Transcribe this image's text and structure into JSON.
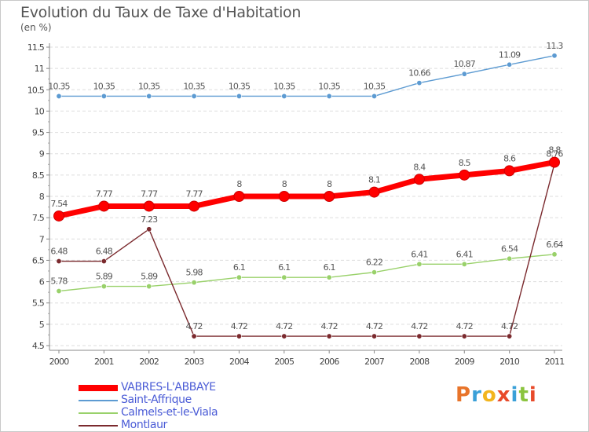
{
  "header": {
    "title": "Evolution du Taux de Taxe d'Habitation",
    "unit": "(en %)"
  },
  "logo": {
    "text": "Proxiti",
    "colors": [
      "#e8742a",
      "#3aa0d8",
      "#f2b51e",
      "#e84a2a",
      "#3aa0d8",
      "#8bc43f",
      "#e84a2a"
    ]
  },
  "chart_data": {
    "type": "line",
    "x": [
      "2000",
      "2001",
      "2002",
      "2003",
      "2004",
      "2005",
      "2006",
      "2007",
      "2008",
      "2009",
      "2010",
      "2011"
    ],
    "ylim": [
      4.5,
      11.5
    ],
    "yticks": [
      "4.5",
      "5",
      "5.5",
      "6",
      "6.5",
      "7",
      "7.5",
      "8",
      "8.5",
      "9",
      "9.5",
      "10",
      "10.5",
      "11",
      "11.5"
    ],
    "grid": "horizontal dashed",
    "legend_position": "bottom-left",
    "series": [
      {
        "name": "VABRES-L'ABBAYE",
        "color": "#ff0000",
        "values": [
          7.54,
          7.77,
          7.77,
          7.77,
          8,
          8,
          8,
          8.1,
          8.4,
          8.5,
          8.6,
          8.8
        ],
        "labels": [
          "7.54",
          "7.77",
          "7.77",
          "7.77",
          "8",
          "8",
          "8",
          "8.1",
          "8.4",
          "8.5",
          "8.6",
          "8.8"
        ]
      },
      {
        "name": "Saint-Affrique",
        "color": "#5d9bd2",
        "values": [
          10.35,
          10.35,
          10.35,
          10.35,
          10.35,
          10.35,
          10.35,
          10.35,
          10.66,
          10.87,
          11.09,
          11.3
        ],
        "labels": [
          "10.35",
          "10.35",
          "10.35",
          "10.35",
          "10.35",
          "10.35",
          "10.35",
          "10.35",
          "10.66",
          "10.87",
          "11.09",
          "11.3"
        ]
      },
      {
        "name": "Calmels-et-le-Viala",
        "color": "#99d16a",
        "values": [
          5.78,
          5.89,
          5.89,
          5.98,
          6.1,
          6.1,
          6.1,
          6.22,
          6.41,
          6.41,
          6.54,
          6.64
        ],
        "labels": [
          "5.78",
          "5.89",
          "5.89",
          "5.98",
          "6.1",
          "6.1",
          "6.1",
          "6.22",
          "6.41",
          "6.41",
          "6.54",
          "6.64"
        ]
      },
      {
        "name": "Montlaur",
        "color": "#7b2a2e",
        "values": [
          6.48,
          6.48,
          7.23,
          4.72,
          4.72,
          4.72,
          4.72,
          4.72,
          4.72,
          4.72,
          4.72,
          8.76
        ],
        "labels": [
          "6.48",
          "6.48",
          "7.23",
          "4.72",
          "4.72",
          "4.72",
          "4.72",
          "4.72",
          "4.72",
          "4.72",
          "4.72",
          "8.76"
        ]
      }
    ]
  }
}
